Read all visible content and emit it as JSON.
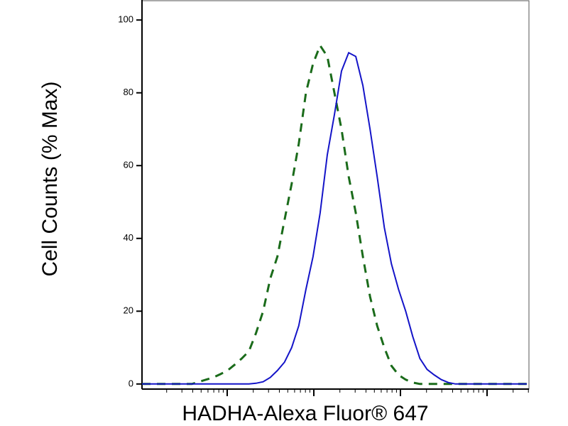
{
  "chart_data": {
    "type": "line",
    "y_label": "Cell Counts (% Max)",
    "x_label": "HADHA-Alexa Fluor® 647",
    "categories": [
      null,
      null,
      null,
      null,
      null,
      null,
      null,
      null,
      null,
      null,
      null,
      null,
      null,
      null,
      null,
      null,
      null,
      null,
      null,
      null,
      null,
      null,
      null,
      null,
      null,
      null,
      null,
      null,
      null,
      null,
      null,
      null,
      null,
      null,
      null,
      null,
      null,
      null,
      null,
      null,
      null,
      null,
      null,
      null,
      null,
      null,
      null,
      null,
      null,
      null,
      null,
      null,
      null,
      null,
      null
    ],
    "series": [
      {
        "color": "#1a6b1a",
        "dashed": true,
        "values": [
          0,
          0,
          0,
          0,
          0,
          0,
          0,
          0,
          0.6,
          1.2,
          1.8,
          2.7,
          3.7,
          5.3,
          7,
          9,
          14,
          20,
          29,
          35,
          45,
          55,
          66,
          80,
          88,
          93,
          90,
          80,
          70,
          57,
          47,
          35,
          24,
          16,
          10,
          5,
          2.5,
          1.2,
          0.4,
          0,
          0,
          0,
          0,
          0,
          0,
          0,
          0,
          0,
          0,
          0,
          0,
          0,
          0,
          0,
          0
        ]
      },
      {
        "color": "#1414c8",
        "dashed": false,
        "values": [
          0,
          0,
          0,
          0,
          0,
          0,
          0,
          0,
          0,
          0,
          0,
          0,
          0,
          0,
          0,
          0,
          0.2,
          0.6,
          1.8,
          3.7,
          6,
          10,
          16,
          26,
          35,
          47,
          63,
          74,
          86,
          91,
          90,
          82,
          70,
          57,
          43,
          33,
          26,
          20,
          13,
          7,
          4,
          2.5,
          1.2,
          0.4,
          0,
          0,
          0,
          0,
          0,
          0,
          0,
          0,
          0,
          0,
          0
        ]
      }
    ],
    "ylim": [
      -1.4,
      105.5
    ],
    "yticks": [
      0,
      20,
      40,
      60,
      80,
      100
    ]
  }
}
